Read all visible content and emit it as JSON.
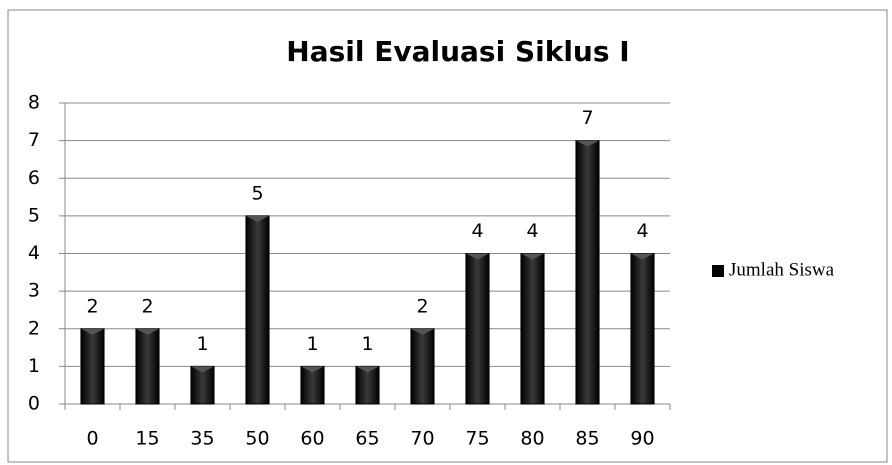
{
  "chart_data": {
    "type": "bar",
    "title": "Hasil Evaluasi Siklus I",
    "categories": [
      "0",
      "15",
      "35",
      "50",
      "60",
      "65",
      "70",
      "75",
      "80",
      "85",
      "90"
    ],
    "series": [
      {
        "name": "Jumlah Siswa",
        "color": "#000000",
        "values": [
          2,
          2,
          1,
          5,
          1,
          1,
          2,
          4,
          4,
          7,
          4
        ]
      }
    ],
    "ylim": [
      0,
      8
    ],
    "yticks": [
      0,
      1,
      2,
      3,
      4,
      5,
      6,
      7,
      8
    ],
    "grid": true,
    "legend": "right"
  }
}
